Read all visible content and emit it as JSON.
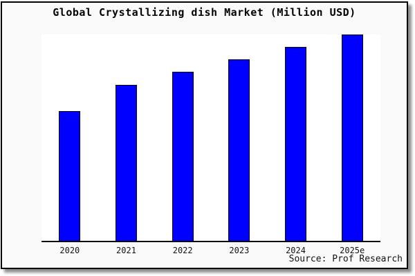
{
  "chart": {
    "title": "Global Crystallizing dish Market (Million USD)",
    "source": "Source: Prof Research",
    "colors": {
      "frame_background": "#fafafa",
      "plot_background": "#ffffff",
      "bar_fill": "#0000ff",
      "bar_border": "#000000",
      "axis": "#000000",
      "text": "#000000"
    }
  },
  "chart_data": {
    "type": "bar",
    "title": "Global Crystallizing dish Market (Million USD)",
    "categories": [
      "2020",
      "2021",
      "2022",
      "2023",
      "2024",
      "2025e"
    ],
    "values": [
      63,
      75.5,
      82,
      88,
      94,
      100
    ],
    "value_note": "relative heights, tallest bar = 100; y-axis has no ticks or labels",
    "xlabel": "",
    "ylabel": "",
    "ylim": [
      0,
      100
    ],
    "grid": false,
    "legend": false,
    "y_axis_visible": false,
    "annotations": [
      "Source: Prof Research"
    ]
  }
}
